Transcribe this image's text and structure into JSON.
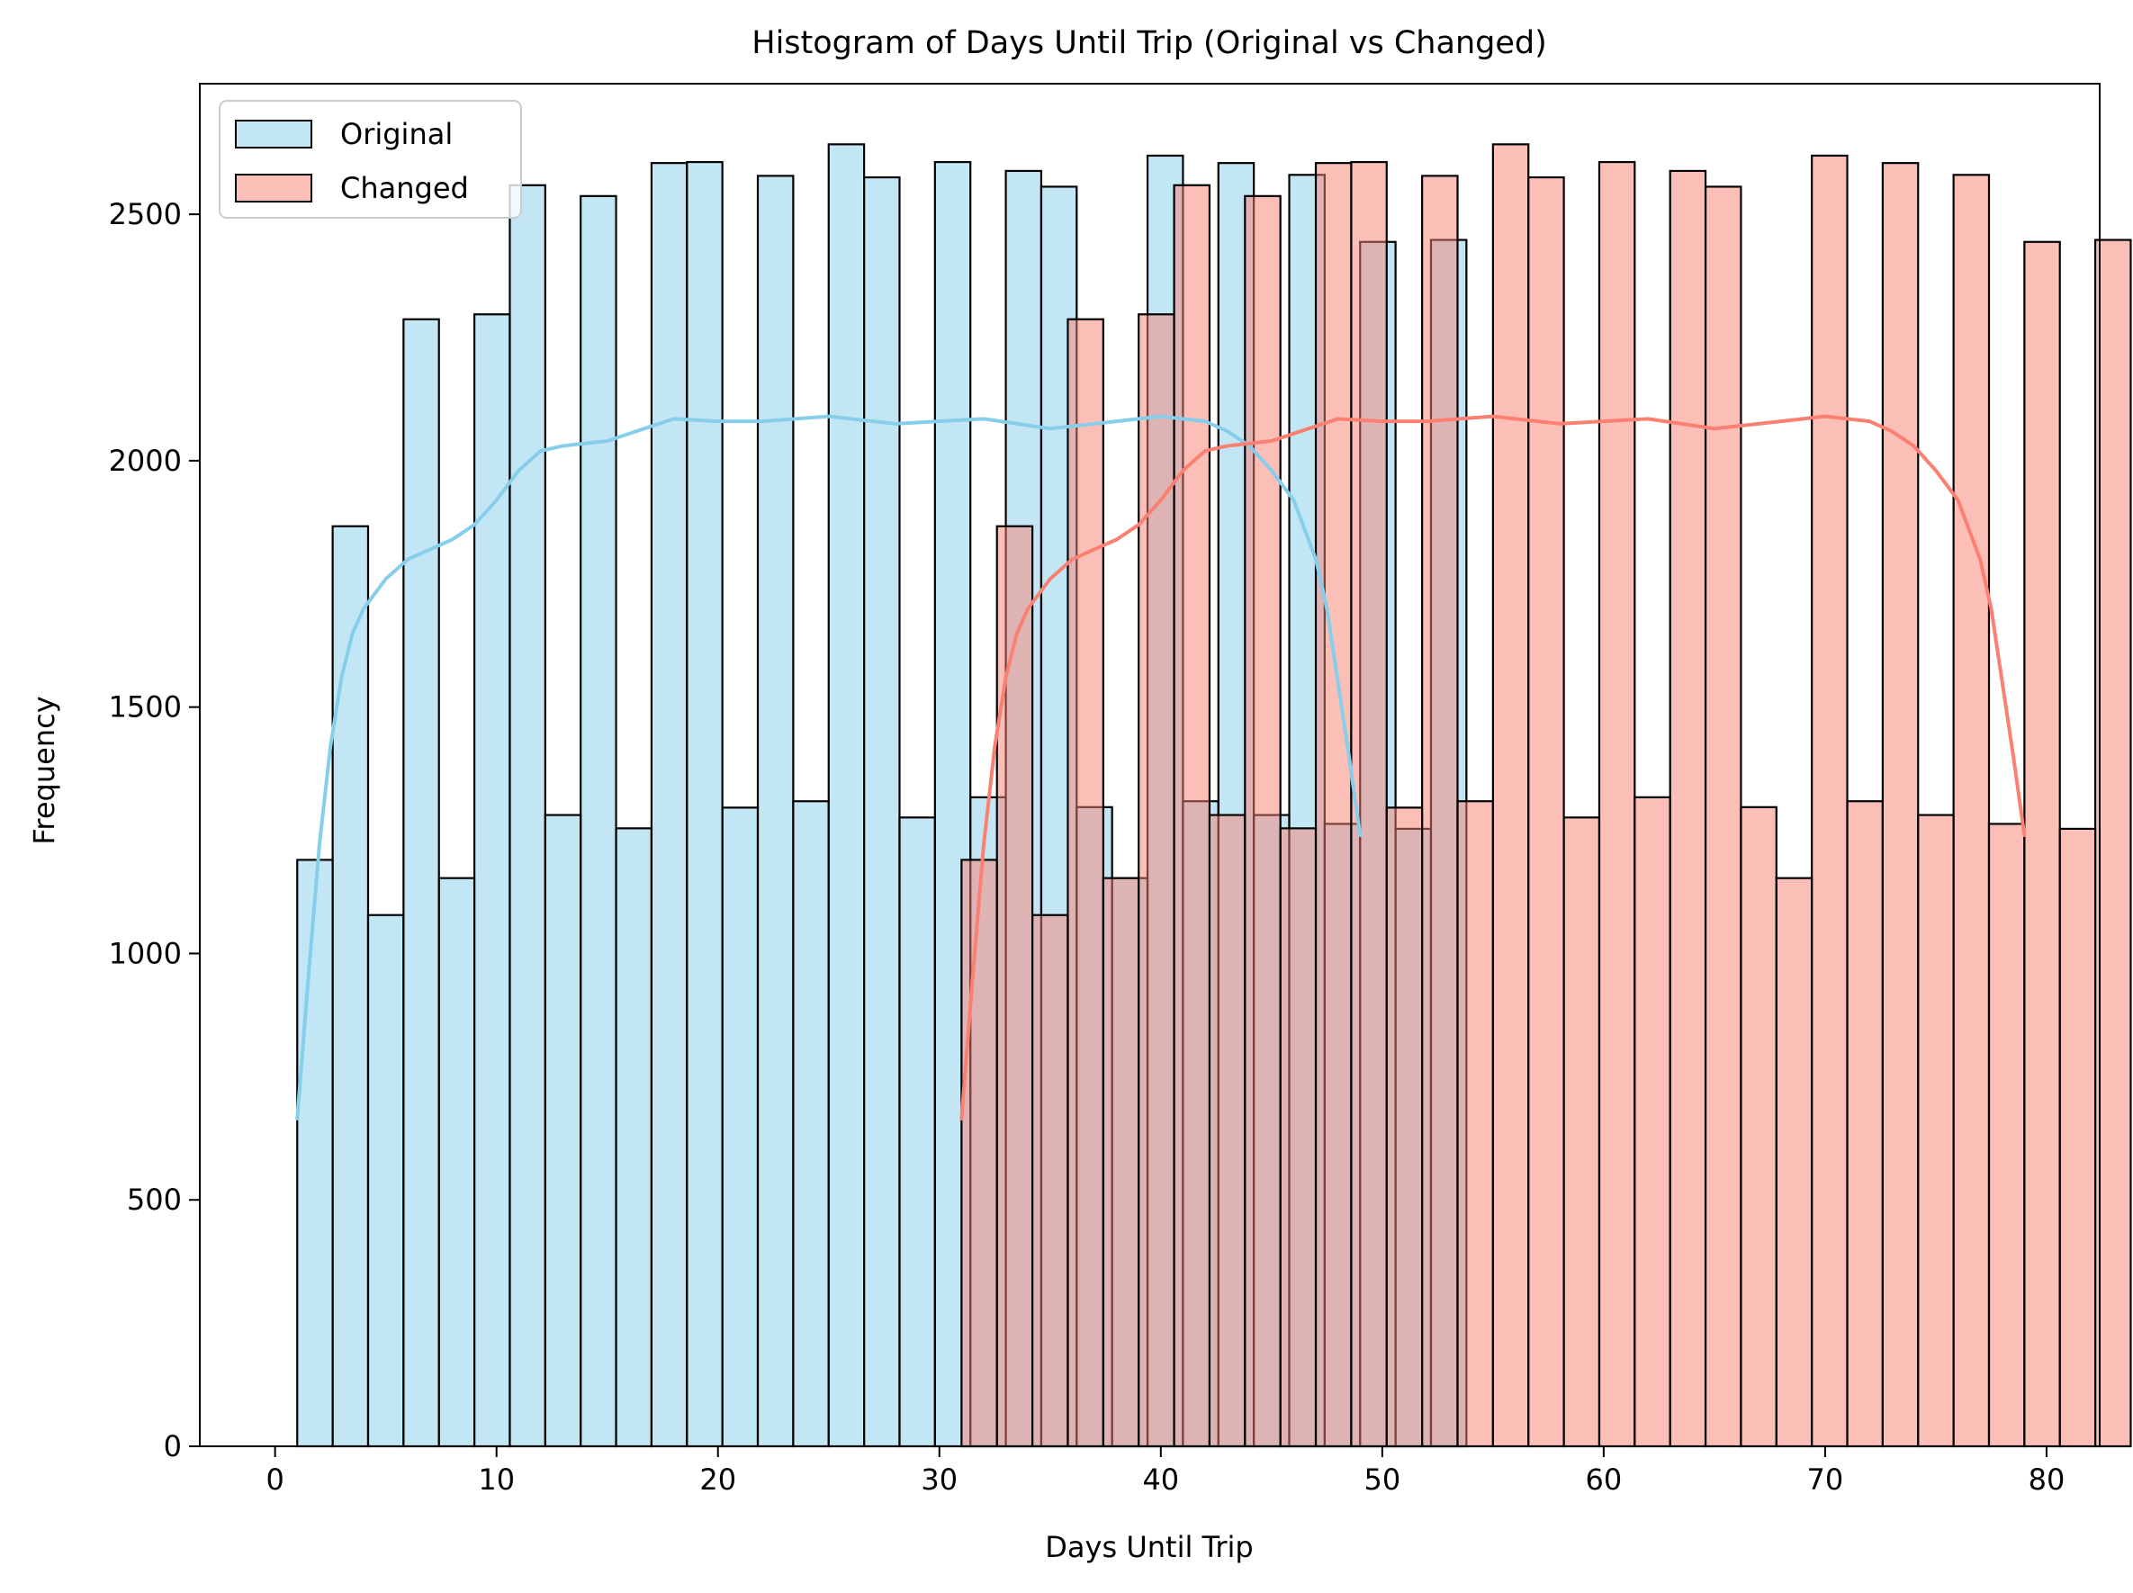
{
  "chart_data": {
    "type": "histogram",
    "title": "Histogram of Days Until Trip (Original vs Changed)",
    "xlabel": "Days Until Trip",
    "ylabel": "Frequency",
    "xlim": [
      -3.4,
      82.4
    ],
    "ylim": [
      0,
      2765
    ],
    "xticks": [
      0,
      10,
      20,
      30,
      40,
      50,
      60,
      70,
      80
    ],
    "yticks": [
      0,
      500,
      1000,
      1500,
      2000,
      2500
    ],
    "legend_position": "upper-left",
    "bin_width": 1.6,
    "series": [
      {
        "name": "Original",
        "fill": "#87CEEB",
        "fill_opacity": 0.5,
        "edge": "#000000",
        "kde_color": "#87CEEB",
        "bin_start": 1.0,
        "values": [
          1190,
          1867,
          1078,
          2287,
          1153,
          2297,
          2559,
          1281,
          2537,
          1254,
          2604,
          2606,
          1296,
          2578,
          1309,
          2642,
          2575,
          1276,
          2606,
          1317,
          2588,
          2556,
          1297,
          1153,
          2619,
          1309,
          2604,
          1281,
          2580,
          1263,
          2444,
          1253,
          2448
        ],
        "kde_x": [
          1,
          1.5,
          2,
          2.5,
          3,
          3.5,
          4,
          5,
          6,
          7,
          8,
          9,
          10,
          11,
          12,
          13,
          15,
          17,
          18,
          20,
          22,
          25,
          28,
          32,
          35,
          38,
          40,
          42,
          43,
          44,
          45,
          46,
          47,
          47.5,
          48,
          48.5,
          49
        ],
        "kde_y": [
          665,
          950,
          1220,
          1420,
          1560,
          1650,
          1700,
          1760,
          1800,
          1820,
          1840,
          1870,
          1920,
          1980,
          2020,
          2030,
          2040,
          2070,
          2085,
          2080,
          2080,
          2090,
          2075,
          2085,
          2065,
          2080,
          2090,
          2080,
          2060,
          2030,
          1980,
          1920,
          1800,
          1700,
          1550,
          1400,
          1240
        ]
      },
      {
        "name": "Changed",
        "fill": "#FA8072",
        "fill_opacity": 0.5,
        "edge": "#000000",
        "kde_color": "#FA8072",
        "bin_start": 31.0,
        "values": [
          1190,
          1867,
          1078,
          2287,
          1153,
          2297,
          2559,
          1281,
          2537,
          1254,
          2604,
          2606,
          1296,
          2578,
          1309,
          2642,
          2575,
          1276,
          2606,
          1317,
          2588,
          2556,
          1297,
          1153,
          2619,
          1309,
          2604,
          1281,
          2580,
          1263,
          2444,
          1253,
          2448
        ],
        "kde_x": [
          31,
          31.5,
          32,
          32.5,
          33,
          33.5,
          34,
          35,
          36,
          37,
          38,
          39,
          40,
          41,
          42,
          43,
          45,
          47,
          48,
          50,
          52,
          55,
          58,
          62,
          65,
          68,
          70,
          72,
          73,
          74,
          75,
          76,
          77,
          77.5,
          78,
          78.5,
          79
        ],
        "kde_y": [
          665,
          950,
          1220,
          1420,
          1560,
          1650,
          1700,
          1760,
          1800,
          1820,
          1840,
          1870,
          1920,
          1980,
          2020,
          2030,
          2040,
          2070,
          2085,
          2080,
          2080,
          2090,
          2075,
          2085,
          2065,
          2080,
          2090,
          2080,
          2060,
          2030,
          1980,
          1920,
          1800,
          1700,
          1550,
          1400,
          1240
        ]
      }
    ]
  }
}
